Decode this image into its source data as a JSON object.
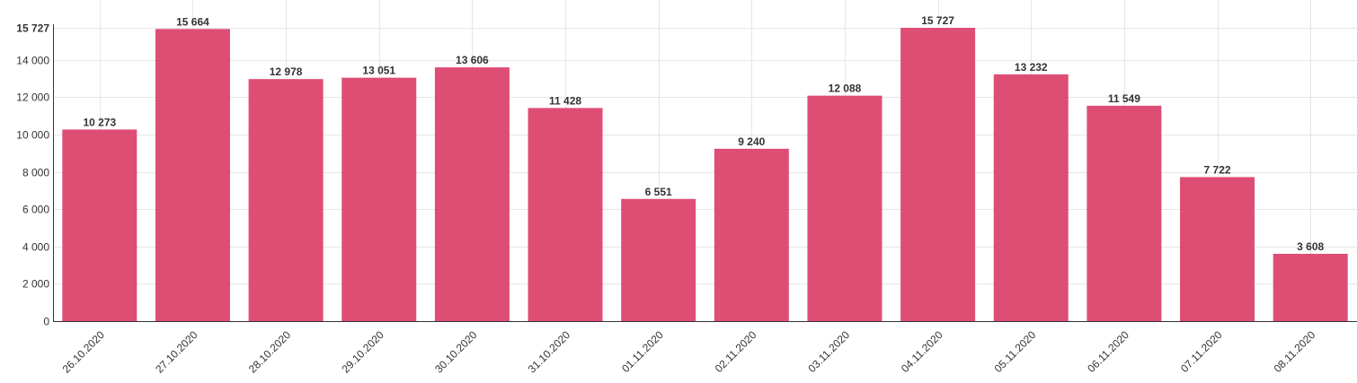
{
  "chart_data": {
    "type": "bar",
    "categories": [
      "26.10.2020",
      "27.10.2020",
      "28.10.2020",
      "29.10.2020",
      "30.10.2020",
      "31.10.2020",
      "01.11.2020",
      "02.11.2020",
      "03.11.2020",
      "04.11.2020",
      "05.11.2020",
      "06.11.2020",
      "07.11.2020",
      "08.11.2020"
    ],
    "values": [
      10273,
      15664,
      12978,
      13051,
      13606,
      11428,
      6551,
      9240,
      12088,
      15727,
      13232,
      11549,
      7722,
      3608
    ],
    "value_labels": [
      "10 273",
      "15 664",
      "12 978",
      "13 051",
      "13 606",
      "11 428",
      "6 551",
      "9 240",
      "12 088",
      "15 727",
      "13 232",
      "11 549",
      "7 722",
      "3 608"
    ],
    "yticks": [
      0,
      2000,
      4000,
      6000,
      8000,
      10000,
      12000,
      14000,
      15727
    ],
    "ytick_labels": [
      "0",
      "2 000",
      "4 000",
      "6 000",
      "8 000",
      "10 000",
      "12 000",
      "14 000",
      "15 727"
    ],
    "ylim": [
      0,
      15727
    ],
    "title": "",
    "xlabel": "",
    "ylabel": "",
    "grid": true,
    "bar_color": "#dc456d"
  }
}
